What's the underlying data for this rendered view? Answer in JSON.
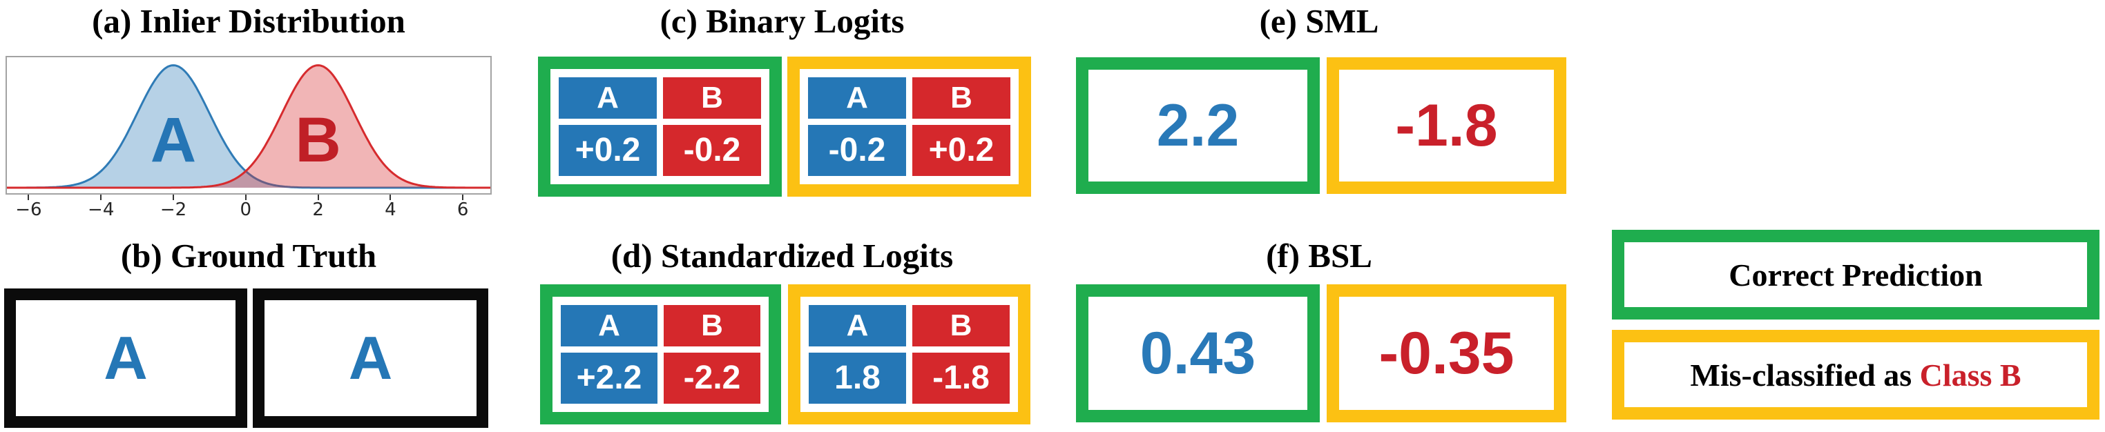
{
  "colors": {
    "correct_border_green": "#1fad4e",
    "misclassified_border_yellow": "#fcc113",
    "class_a_blue": "#2577b6",
    "class_b_red": "#d5282c",
    "score_text_blue": "#2979b8",
    "score_text_red": "#c9202a",
    "ground_truth_border_black": "#0b0b0b"
  },
  "panels": {
    "a": {
      "label": "(a) Inlier Distribution"
    },
    "b": {
      "label": "(b) Ground Truth",
      "boxes": [
        {
          "text": "A"
        },
        {
          "text": "A"
        }
      ]
    },
    "c": {
      "label": "(c) Binary Logits",
      "tables": [
        {
          "status": "correct",
          "headers": [
            "A",
            "B"
          ],
          "values": [
            "+0.2",
            "-0.2"
          ]
        },
        {
          "status": "misclassified",
          "headers": [
            "A",
            "B"
          ],
          "values": [
            "-0.2",
            "+0.2"
          ]
        }
      ]
    },
    "d": {
      "label": "(d) Standardized Logits",
      "tables": [
        {
          "status": "correct",
          "headers": [
            "A",
            "B"
          ],
          "values": [
            "+2.2",
            "-2.2"
          ]
        },
        {
          "status": "misclassified",
          "headers": [
            "A",
            "B"
          ],
          "values": [
            "1.8",
            "-1.8"
          ]
        }
      ]
    },
    "e": {
      "label": "(e) SML",
      "scores": [
        {
          "status": "correct",
          "value": "2.2"
        },
        {
          "status": "misclassified",
          "value": "-1.8"
        }
      ]
    },
    "f": {
      "label": "(f) BSL",
      "scores": [
        {
          "status": "correct",
          "value": "0.43"
        },
        {
          "status": "misclassified",
          "value": "-0.35"
        }
      ]
    }
  },
  "legend": {
    "correct": "Correct Prediction",
    "mis_prefix": "Mis-classified as ",
    "mis_class": "Class B"
  },
  "chart_data": {
    "type": "area",
    "title": "(a) Inlier Distribution",
    "xlabel": "",
    "ylabel": "",
    "xlim": [
      -6.6,
      6.76
    ],
    "ylim": [
      -0.018,
      0.425
    ],
    "xticks": [
      -6,
      -4,
      -2,
      0,
      2,
      4,
      6
    ],
    "grid": false,
    "legend_position": "none",
    "series": [
      {
        "name": "A",
        "curve": "gaussian-density",
        "mean": -2,
        "std": 1,
        "line_color": "#2f7bb6",
        "fill_opacity": 0.35,
        "label_color": "#2575b5"
      },
      {
        "name": "B",
        "curve": "gaussian-density",
        "mean": 2,
        "std": 1,
        "line_color": "#d62b2e",
        "fill_opacity": 0.35,
        "label_color": "#c01f26"
      }
    ]
  }
}
